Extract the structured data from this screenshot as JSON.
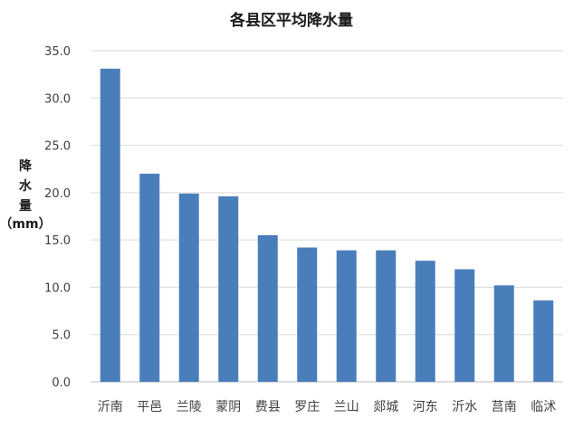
{
  "chart_data": {
    "type": "bar",
    "title": "各县区平均降水量",
    "ylabel_lines": [
      "降",
      "水",
      "量",
      "（mm）"
    ],
    "categories": [
      "沂南",
      "平邑",
      "兰陵",
      "蒙阴",
      "费县",
      "罗庄",
      "兰山",
      "郯城",
      "河东",
      "沂水",
      "莒南",
      "临沭"
    ],
    "values": [
      33.1,
      22.0,
      19.9,
      19.6,
      15.5,
      14.2,
      13.9,
      13.9,
      12.8,
      11.9,
      10.2,
      8.6
    ],
    "ylim": [
      0,
      35
    ],
    "yticks": [
      "0.0",
      "5.0",
      "10.0",
      "15.0",
      "20.0",
      "25.0",
      "30.0",
      "35.0"
    ],
    "bar_color": "#4a7ebb",
    "grid": true
  }
}
